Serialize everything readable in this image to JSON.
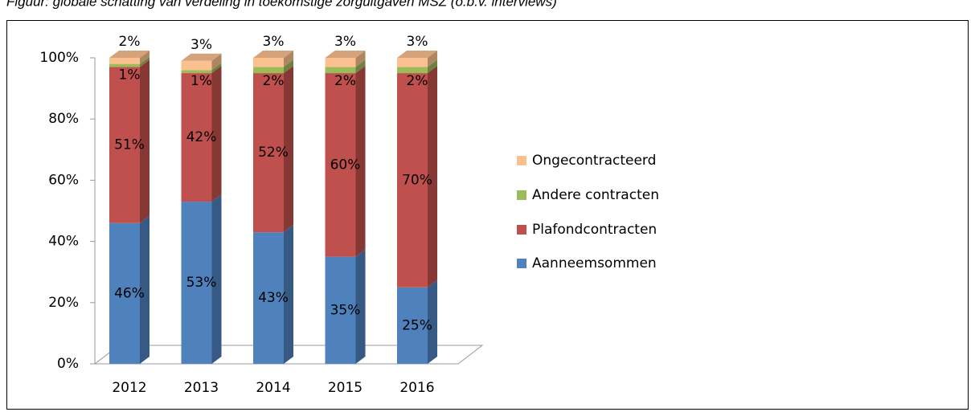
{
  "chart_data": {
    "type": "stacked_bar",
    "title": "Figuur: globale schatting van verdeling in toekomstige zorguitgaven MSZ (o.b.v. interviews)",
    "categories": [
      "2012",
      "2013",
      "2014",
      "2015",
      "2016"
    ],
    "series": [
      {
        "name": "Aanneemsommen",
        "color": "#4f81bd",
        "values": [
          46,
          53,
          43,
          35,
          25
        ],
        "value_labels": [
          "46%",
          "53%",
          "43%",
          "35%",
          "25%"
        ]
      },
      {
        "name": "Plafondcontracten",
        "color": "#c0504d",
        "values": [
          51,
          42,
          52,
          60,
          70
        ],
        "value_labels": [
          "51%",
          "42%",
          "52%",
          "60%",
          "70%"
        ]
      },
      {
        "name": "Andere contracten",
        "color": "#9bbb59",
        "values": [
          1,
          1,
          2,
          2,
          2
        ],
        "value_labels": [
          "1%",
          "1%",
          "2%",
          "2%",
          "2%"
        ]
      },
      {
        "name": "Ongecontracteerd",
        "color": "#fac090",
        "values": [
          2,
          3,
          3,
          3,
          3
        ],
        "value_labels": [
          "2%",
          "3%",
          "3%",
          "3%",
          "3%"
        ]
      }
    ],
    "ylim": [
      0,
      100
    ],
    "yticks": [
      {
        "value": 0,
        "label": "0%"
      },
      {
        "value": 20,
        "label": "20%"
      },
      {
        "value": 40,
        "label": "40%"
      },
      {
        "value": 60,
        "label": "60%"
      },
      {
        "value": 80,
        "label": "80%"
      },
      {
        "value": 100,
        "label": "100%"
      }
    ],
    "legend": "right"
  }
}
